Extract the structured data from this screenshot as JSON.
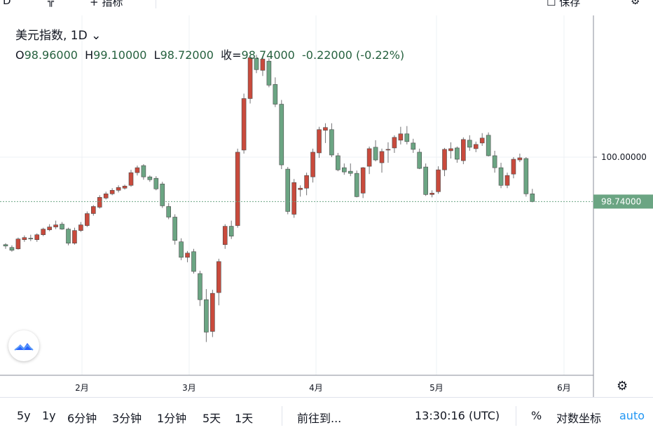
{
  "top_bar": {
    "items": [
      "D",
      "指标",
      "保存"
    ]
  },
  "legend": {
    "symbol": "美元指数, 1D",
    "open_label": "O",
    "open": "98.96000",
    "high_label": "H",
    "high": "99.10000",
    "low_label": "L",
    "low": "98.72000",
    "close_label": "收=",
    "close": "98.74000",
    "change": "-0.22000 (-0.22%)"
  },
  "price_axis": {
    "tick_label": "100.00000",
    "last_price_label": "98.74000"
  },
  "time_axis": {
    "labels": [
      "2月",
      "3月",
      "4月",
      "5月",
      "6月"
    ]
  },
  "bottom_bar": {
    "ranges": [
      "5y",
      "1y",
      "6分钟",
      "3分钟",
      "1分钟",
      "5天",
      "1天"
    ],
    "goto": "前往到...",
    "time": "13:30:16 (UTC)",
    "percent": "%",
    "log": "对数坐标",
    "auto": "auto"
  },
  "colors": {
    "up": "#c94a3c",
    "down": "#6ba583",
    "last_price_bg": "#6ba583",
    "auto": "#2196f3"
  },
  "chart_data": {
    "type": "candlestick",
    "symbol": "美元指数",
    "interval": "1D",
    "y_reference": 100.0,
    "last_price": 98.74,
    "months": [
      "2月",
      "3月",
      "4月",
      "5月",
      "6月"
    ],
    "ohlc": [
      [
        97.52,
        97.56,
        97.4,
        97.48
      ],
      [
        97.44,
        97.5,
        97.32,
        97.36
      ],
      [
        97.4,
        97.72,
        97.38,
        97.68
      ],
      [
        97.66,
        97.78,
        97.6,
        97.72
      ],
      [
        97.7,
        97.8,
        97.62,
        97.68
      ],
      [
        97.66,
        97.84,
        97.6,
        97.8
      ],
      [
        97.8,
        98.0,
        97.76,
        97.96
      ],
      [
        97.94,
        98.1,
        97.9,
        98.02
      ],
      [
        98.02,
        98.2,
        97.96,
        98.08
      ],
      [
        98.1,
        98.16,
        97.94,
        97.96
      ],
      [
        97.96,
        98.0,
        97.5,
        97.56
      ],
      [
        97.56,
        98.0,
        97.52,
        97.92
      ],
      [
        97.92,
        98.16,
        97.88,
        98.08
      ],
      [
        98.06,
        98.46,
        98.02,
        98.4
      ],
      [
        98.4,
        98.64,
        98.34,
        98.6
      ],
      [
        98.58,
        98.92,
        98.54,
        98.86
      ],
      [
        98.84,
        99.02,
        98.8,
        98.96
      ],
      [
        98.96,
        99.12,
        98.92,
        99.06
      ],
      [
        99.06,
        99.2,
        99.0,
        99.14
      ],
      [
        99.12,
        99.22,
        99.08,
        99.18
      ],
      [
        99.2,
        99.64,
        99.16,
        99.56
      ],
      [
        99.56,
        99.76,
        99.48,
        99.7
      ],
      [
        99.76,
        99.8,
        99.36,
        99.44
      ],
      [
        99.44,
        99.48,
        99.3,
        99.36
      ],
      [
        99.4,
        99.46,
        99.06,
        99.1
      ],
      [
        99.24,
        99.3,
        98.56,
        98.62
      ],
      [
        98.6,
        98.7,
        98.24,
        98.3
      ],
      [
        98.3,
        98.38,
        97.52,
        97.64
      ],
      [
        97.6,
        97.7,
        97.08,
        97.16
      ],
      [
        97.16,
        97.34,
        97.02,
        97.28
      ],
      [
        97.32,
        97.4,
        96.7,
        96.76
      ],
      [
        96.7,
        96.78,
        95.78,
        95.96
      ],
      [
        95.96,
        96.26,
        94.76,
        95.04
      ],
      [
        95.06,
        96.24,
        94.9,
        96.14
      ],
      [
        96.16,
        97.12,
        95.8,
        97.04
      ],
      [
        97.52,
        98.1,
        97.4,
        98.04
      ],
      [
        98.04,
        98.2,
        97.68,
        97.76
      ],
      [
        98.06,
        100.24,
        98.0,
        100.14
      ],
      [
        100.2,
        101.8,
        100.1,
        101.66
      ],
      [
        101.66,
        102.88,
        101.52,
        102.82
      ],
      [
        102.8,
        102.9,
        102.38,
        102.48
      ],
      [
        102.46,
        102.86,
        102.3,
        102.78
      ],
      [
        102.72,
        102.8,
        101.98,
        102.04
      ],
      [
        102.06,
        102.26,
        101.42,
        101.5
      ],
      [
        101.5,
        101.62,
        99.66,
        99.78
      ],
      [
        99.66,
        99.72,
        98.38,
        98.46
      ],
      [
        98.38,
        99.38,
        98.28,
        99.28
      ],
      [
        99.08,
        99.2,
        98.88,
        99.12
      ],
      [
        99.12,
        99.56,
        98.92,
        99.48
      ],
      [
        99.44,
        100.24,
        99.28,
        100.14
      ],
      [
        100.12,
        100.86,
        99.98,
        100.78
      ],
      [
        100.76,
        100.96,
        100.4,
        100.84
      ],
      [
        100.78,
        100.96,
        100.0,
        100.06
      ],
      [
        100.04,
        100.12,
        99.6,
        99.64
      ],
      [
        99.7,
        99.82,
        99.5,
        99.58
      ],
      [
        99.6,
        99.82,
        99.46,
        99.54
      ],
      [
        99.54,
        99.62,
        98.86,
        98.88
      ],
      [
        98.98,
        99.72,
        98.84,
        99.7
      ],
      [
        99.74,
        100.3,
        99.52,
        100.24
      ],
      [
        100.28,
        100.48,
        99.88,
        99.92
      ],
      [
        99.84,
        100.24,
        99.56,
        100.16
      ],
      [
        100.2,
        100.42,
        99.84,
        100.22
      ],
      [
        100.26,
        100.62,
        100.12,
        100.56
      ],
      [
        100.48,
        100.86,
        100.36,
        100.66
      ],
      [
        100.66,
        100.88,
        100.36,
        100.44
      ],
      [
        100.4,
        100.52,
        100.12,
        100.22
      ],
      [
        100.14,
        100.24,
        99.66,
        99.68
      ],
      [
        99.72,
        99.82,
        98.9,
        98.94
      ],
      [
        98.94,
        99.06,
        98.86,
        98.98
      ],
      [
        99.02,
        99.74,
        98.96,
        99.64
      ],
      [
        99.64,
        100.26,
        99.46,
        100.22
      ],
      [
        100.18,
        100.42,
        99.96,
        100.24
      ],
      [
        100.26,
        100.3,
        99.84,
        99.94
      ],
      [
        99.9,
        100.56,
        99.8,
        100.5
      ],
      [
        100.48,
        100.62,
        100.18,
        100.28
      ],
      [
        100.24,
        100.44,
        100.14,
        100.36
      ],
      [
        100.4,
        100.68,
        100.32,
        100.54
      ],
      [
        100.62,
        100.7,
        100.02,
        100.04
      ],
      [
        100.04,
        100.18,
        99.56,
        99.7
      ],
      [
        99.7,
        99.84,
        99.12,
        99.2
      ],
      [
        99.2,
        99.56,
        99.12,
        99.48
      ],
      [
        99.52,
        100.0,
        99.4,
        99.94
      ],
      [
        99.92,
        100.1,
        99.86,
        99.98
      ],
      [
        99.96,
        100.0,
        98.88,
        98.96
      ],
      [
        98.96,
        99.1,
        98.72,
        98.74
      ]
    ]
  }
}
